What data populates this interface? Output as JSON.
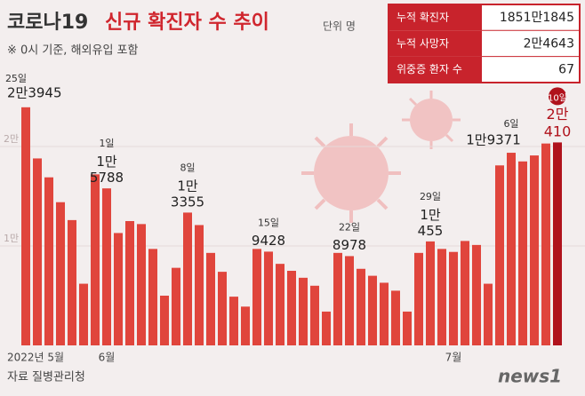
{
  "chart_data": {
    "type": "bar",
    "title_prefix": "코로나19",
    "title": "신규 확진자 수 추이",
    "unit": "단위 명",
    "subtitle": "※ 0시 기준, 해외유입 포함",
    "source": "자료 질병관리청",
    "logo": "news1",
    "summary": [
      {
        "label": "누적 확진자",
        "value": "1851만1845"
      },
      {
        "label": "누적 사망자",
        "value": "2만4643"
      },
      {
        "label": "위중증 환자 수",
        "value": "67"
      }
    ],
    "categories": [
      "2022년 5월",
      null,
      null,
      null,
      null,
      null,
      null,
      "6월",
      null,
      null,
      null,
      null,
      null,
      null,
      null,
      null,
      null,
      null,
      null,
      null,
      null,
      null,
      null,
      null,
      null,
      null,
      null,
      null,
      null,
      null,
      null,
      null,
      null,
      null,
      null,
      null,
      null,
      "7월",
      null,
      null,
      null,
      null,
      null,
      null,
      null,
      null,
      null
    ],
    "day_labels": [
      "25일",
      null,
      null,
      null,
      null,
      null,
      null,
      "1일",
      null,
      null,
      null,
      null,
      null,
      null,
      "8일",
      null,
      null,
      null,
      null,
      null,
      null,
      "15일",
      null,
      null,
      null,
      null,
      null,
      null,
      "22일",
      null,
      null,
      null,
      null,
      null,
      null,
      "29일",
      null,
      null,
      null,
      null,
      null,
      null,
      "6일",
      null,
      null,
      null,
      "10일"
    ],
    "values": [
      23945,
      18800,
      16900,
      14400,
      12600,
      6200,
      17200,
      15788,
      11300,
      12500,
      12200,
      9700,
      5000,
      7800,
      13355,
      12100,
      9300,
      7400,
      4900,
      3900,
      9700,
      9428,
      8200,
      7500,
      6800,
      6000,
      3400,
      9300,
      8978,
      7700,
      7000,
      6300,
      5500,
      3400,
      9300,
      10455,
      9700,
      9400,
      10500,
      10100,
      6200,
      18100,
      19371,
      18500,
      19100,
      20300,
      20410
    ],
    "value_labels": [
      "2만3945",
      null,
      null,
      null,
      null,
      null,
      null,
      "1만5788",
      null,
      null,
      null,
      null,
      null,
      null,
      "1만3355",
      null,
      null,
      null,
      null,
      null,
      null,
      "9428",
      null,
      null,
      null,
      null,
      null,
      null,
      "8978",
      null,
      null,
      null,
      null,
      null,
      null,
      "1만455",
      null,
      null,
      null,
      null,
      null,
      null,
      "1만9371",
      null,
      null,
      null,
      "2만410"
    ],
    "color": "#e0453c",
    "highlight_color": "#b0121c",
    "ylim": [
      0,
      30000
    ],
    "yticks": [
      {
        "value": 10000,
        "label": "1만"
      },
      {
        "value": 20000,
        "label": "2만"
      }
    ],
    "grid": true
  }
}
